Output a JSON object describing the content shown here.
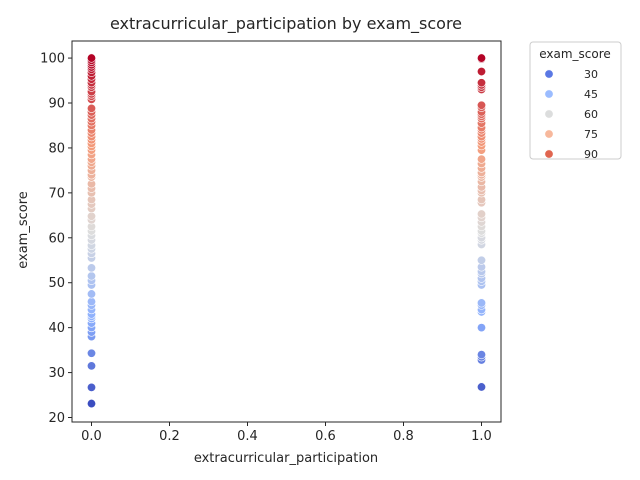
{
  "chart_data": {
    "type": "scatter",
    "title": "extracurricular_participation by exam_score",
    "xlabel": "extracurricular_participation",
    "ylabel": "exam_score",
    "xlim": [
      -0.05,
      1.05
    ],
    "ylim": [
      19.0,
      103.8
    ],
    "xticks": [
      "0.0",
      "0.2",
      "0.4",
      "0.6",
      "0.8",
      "1.0"
    ],
    "xtick_values": [
      0.0,
      0.2,
      0.4,
      0.6,
      0.8,
      1.0
    ],
    "yticks": [
      "20",
      "30",
      "40",
      "50",
      "60",
      "70",
      "80",
      "90",
      "100"
    ],
    "ytick_values": [
      20,
      30,
      40,
      50,
      60,
      70,
      80,
      90,
      100
    ],
    "grid": false,
    "hue": "exam_score",
    "colormap": "coolwarm",
    "legend": {
      "title": "exam_score",
      "placement": "outside-top-right",
      "entries": [
        {
          "label": "30",
          "value": 30,
          "color": "#5a78e4"
        },
        {
          "label": "45",
          "value": 45,
          "color": "#9bbcff"
        },
        {
          "label": "60",
          "value": 60,
          "color": "#dcdddd"
        },
        {
          "label": "75",
          "value": 75,
          "color": "#f7b89c"
        },
        {
          "label": "90",
          "value": 90,
          "color": "#e0654f"
        }
      ]
    },
    "series": [
      {
        "x": 0,
        "values": [
          23.1,
          26.7,
          31.5,
          34.3,
          38.0,
          39.0,
          40.0,
          41.0,
          42.0,
          42.5,
          43.0,
          44.0,
          45.0,
          45.8,
          47.5,
          49.5,
          50.5,
          51.5,
          53.3,
          55.5,
          56.5,
          57.5,
          58.3,
          59.5,
          60.5,
          61.5,
          62.5,
          64.0,
          64.8,
          66.5,
          67.5,
          68.5,
          70.0,
          71.0,
          72.0,
          73.5,
          74.0,
          75.0,
          76.0,
          76.8,
          77.5,
          78.5,
          79.5,
          80.3,
          81.0,
          81.8,
          82.5,
          83.3,
          84.0,
          85.0,
          85.8,
          86.5,
          87.3,
          88.0,
          88.8,
          90.8,
          91.5,
          92.0,
          92.5,
          93.5,
          94.0,
          94.5,
          95.3,
          96.0,
          96.8,
          97.5,
          98.0,
          98.5,
          99.0,
          99.5,
          100.0
        ]
      },
      {
        "x": 1,
        "values": [
          26.8,
          32.8,
          33.5,
          34.0,
          40.0,
          43.5,
          44.0,
          45.0,
          45.5,
          49.5,
          50.3,
          51.0,
          52.0,
          52.5,
          53.5,
          55.0,
          58.5,
          59.5,
          60.0,
          61.0,
          61.5,
          62.5,
          63.5,
          64.5,
          65.3,
          67.8,
          68.5,
          70.0,
          70.5,
          71.3,
          72.5,
          73.5,
          74.0,
          74.5,
          75.5,
          76.5,
          77.5,
          79.5,
          80.5,
          81.3,
          82.0,
          82.5,
          83.3,
          84.0,
          84.5,
          85.5,
          86.5,
          87.0,
          87.5,
          88.0,
          89.0,
          89.5,
          93.0,
          93.5,
          94.0,
          94.5,
          97.0,
          99.8,
          100.0
        ]
      }
    ]
  }
}
